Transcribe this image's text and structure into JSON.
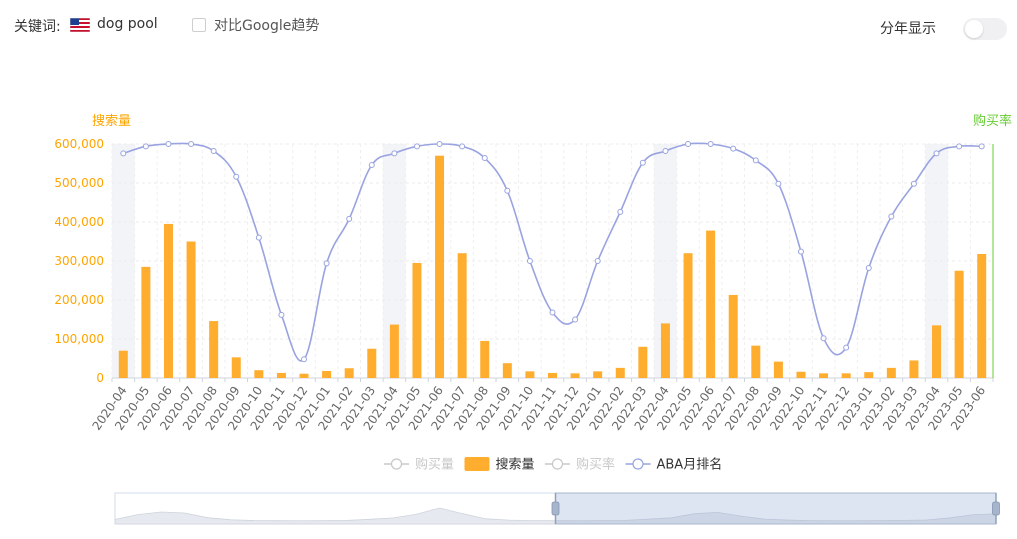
{
  "header": {
    "keyword_label": "关键词:",
    "flag_icon": "us-flag-icon",
    "keyword": "dog pool",
    "compare_label": "对比Google趋势",
    "compare_checked": false,
    "year_view_label": "分年显示",
    "year_view_on": false
  },
  "colors": {
    "bar": "#FFAD2E",
    "rank_line": "#99A3E0",
    "left_axis": "#FFA500",
    "right_axis": "#66CC33",
    "legend_disabled": "#c8c8c8",
    "highlight_band": "#f3f4f8"
  },
  "chart_data": {
    "type": "bar",
    "title": "",
    "left_axis_name": "搜索量",
    "right_axis_name": "购买率",
    "ylim": [
      0,
      600000
    ],
    "yticks": [
      "0",
      "100,000",
      "200,000",
      "300,000",
      "400,000",
      "500,000",
      "600,000"
    ],
    "grid": true,
    "legend_position": "bottom",
    "categories": [
      "2020-04",
      "2020-05",
      "2020-06",
      "2020-07",
      "2020-08",
      "2020-09",
      "2020-10",
      "2020-11",
      "2020-12",
      "2021-01",
      "2021-02",
      "2021-03",
      "2021-04",
      "2021-05",
      "2021-06",
      "2021-07",
      "2021-08",
      "2021-09",
      "2021-10",
      "2021-11",
      "2021-12",
      "2022-01",
      "2022-02",
      "2022-03",
      "2022-04",
      "2022-05",
      "2022-06",
      "2022-07",
      "2022-08",
      "2022-09",
      "2022-10",
      "2022-11",
      "2022-12",
      "2023-01",
      "2023-02",
      "2023-03",
      "2023-04",
      "2023-05",
      "2023-06"
    ],
    "series": [
      {
        "name": "搜索量",
        "type": "bar",
        "values": [
          70000,
          285000,
          395000,
          350000,
          146000,
          53000,
          20000,
          13000,
          11000,
          18000,
          25000,
          75000,
          137000,
          295000,
          570000,
          320000,
          95000,
          38000,
          17000,
          13000,
          12000,
          17000,
          26000,
          80000,
          140000,
          320000,
          378000,
          213000,
          83000,
          42000,
          16000,
          12000,
          12000,
          15000,
          26000,
          45000,
          135000,
          275000,
          318000
        ]
      },
      {
        "name": "ABA月排名",
        "type": "line",
        "smooth": true,
        "plot_fraction_from_top": [
          0.04,
          0.01,
          0.0,
          0.0,
          0.03,
          0.14,
          0.4,
          0.73,
          0.92,
          0.51,
          0.32,
          0.09,
          0.04,
          0.01,
          0.0,
          0.01,
          0.06,
          0.2,
          0.5,
          0.72,
          0.75,
          0.5,
          0.29,
          0.08,
          0.03,
          0.0,
          0.0,
          0.02,
          0.07,
          0.17,
          0.46,
          0.83,
          0.87,
          0.53,
          0.31,
          0.17,
          0.04,
          0.01,
          0.01
        ]
      }
    ],
    "legend": [
      {
        "name": "购买量",
        "icon": "line-circle-icon",
        "enabled": false
      },
      {
        "name": "搜索量",
        "icon": "rect-icon",
        "enabled": true
      },
      {
        "name": "购买率",
        "icon": "line-circle-icon",
        "enabled": false
      },
      {
        "name": "ABA月排名",
        "icon": "line-circle-icon",
        "enabled": true
      }
    ],
    "highlight_categories": [
      "2020-04",
      "2021-04",
      "2022-04",
      "2023-04"
    ],
    "slider": {
      "start_fraction": 0.5,
      "end_fraction": 1.0
    }
  }
}
